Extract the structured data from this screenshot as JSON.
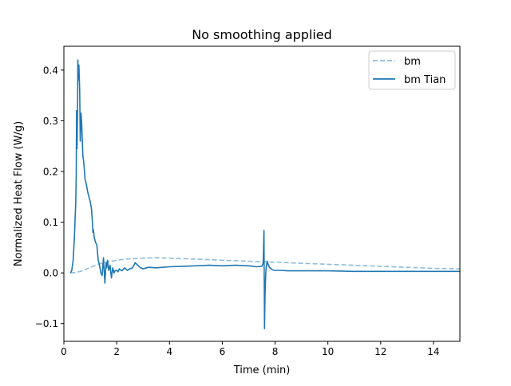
{
  "chart_data": {
    "type": "line",
    "title": "No smoothing applied",
    "xlabel": "Time (min)",
    "ylabel": "Normalized Heat Flow (W/g)",
    "xlim": [
      0,
      15
    ],
    "ylim": [
      -0.135,
      0.447
    ],
    "xticks": [
      0,
      2,
      4,
      6,
      8,
      10,
      12,
      14
    ],
    "yticks": [
      -0.1,
      0.0,
      0.1,
      0.2,
      0.3,
      0.4
    ],
    "xtick_labels": [
      "0",
      "2",
      "4",
      "6",
      "8",
      "10",
      "12",
      "14"
    ],
    "ytick_labels": [
      "−0.1",
      "0.0",
      "0.1",
      "0.2",
      "0.3",
      "0.4"
    ],
    "grid": false,
    "legend_position": "top-right",
    "series": [
      {
        "name": "bm",
        "style": "dashed",
        "color": "#8dbcdc",
        "x": [
          0.25,
          0.5,
          0.75,
          1.0,
          1.25,
          1.5,
          2.0,
          2.5,
          3.0,
          3.5,
          4.0,
          5.0,
          6.0,
          7.0,
          7.5,
          8.0,
          9.0,
          10.0,
          11.0,
          12.0,
          13.0,
          14.0,
          15.0
        ],
        "y": [
          0.0,
          0.001,
          0.005,
          0.011,
          0.016,
          0.02,
          0.025,
          0.028,
          0.029,
          0.03,
          0.029,
          0.027,
          0.025,
          0.023,
          0.022,
          0.021,
          0.019,
          0.017,
          0.015,
          0.013,
          0.011,
          0.009,
          0.008
        ]
      },
      {
        "name": "bm Tian",
        "style": "solid",
        "color": "#1f77b4",
        "x": [
          0.25,
          0.3,
          0.35,
          0.4,
          0.42,
          0.45,
          0.47,
          0.48,
          0.5,
          0.52,
          0.53,
          0.55,
          0.57,
          0.6,
          0.62,
          0.65,
          0.67,
          0.7,
          0.72,
          0.75,
          0.78,
          0.8,
          0.85,
          0.9,
          0.95,
          1.0,
          1.05,
          1.08,
          1.1,
          1.12,
          1.15,
          1.2,
          1.25,
          1.3,
          1.35,
          1.4,
          1.45,
          1.5,
          1.55,
          1.6,
          1.62,
          1.65,
          1.7,
          1.75,
          1.8,
          1.85,
          1.9,
          1.95,
          2.0,
          2.05,
          2.1,
          2.2,
          2.3,
          2.4,
          2.5,
          2.6,
          2.7,
          2.8,
          2.9,
          3.0,
          3.2,
          3.5,
          4.0,
          4.5,
          5.0,
          5.5,
          6.0,
          6.5,
          7.0,
          7.3,
          7.5,
          7.55,
          7.58,
          7.6,
          7.62,
          7.65,
          7.7,
          7.75,
          7.8,
          7.85,
          7.9,
          8.0,
          8.2,
          8.5,
          9.0,
          10.0,
          11.0,
          12.0,
          13.0,
          14.0,
          15.0
        ],
        "y": [
          0.0,
          0.005,
          0.025,
          0.07,
          0.1,
          0.14,
          0.2,
          0.32,
          0.245,
          0.33,
          0.42,
          0.38,
          0.41,
          0.36,
          0.26,
          0.315,
          0.3,
          0.26,
          0.23,
          0.22,
          0.2,
          0.185,
          0.175,
          0.16,
          0.15,
          0.14,
          0.125,
          0.1,
          0.08,
          0.085,
          0.07,
          0.06,
          0.055,
          0.025,
          0.015,
          0.0,
          -0.005,
          0.03,
          -0.02,
          0.02,
          0.01,
          0.025,
          0.005,
          0.015,
          -0.01,
          0.01,
          0.0,
          0.005,
          0.005,
          0.002,
          0.008,
          0.004,
          0.01,
          0.005,
          0.008,
          0.01,
          0.02,
          0.015,
          0.01,
          0.008,
          0.011,
          0.01,
          0.012,
          0.013,
          0.014,
          0.015,
          0.014,
          0.015,
          0.014,
          0.012,
          0.013,
          0.02,
          0.084,
          -0.11,
          -0.04,
          0.005,
          0.023,
          0.015,
          0.01,
          0.008,
          0.006,
          0.005,
          0.005,
          0.004,
          0.004,
          0.004,
          0.003,
          0.003,
          0.003,
          0.003,
          0.003
        ]
      }
    ]
  }
}
